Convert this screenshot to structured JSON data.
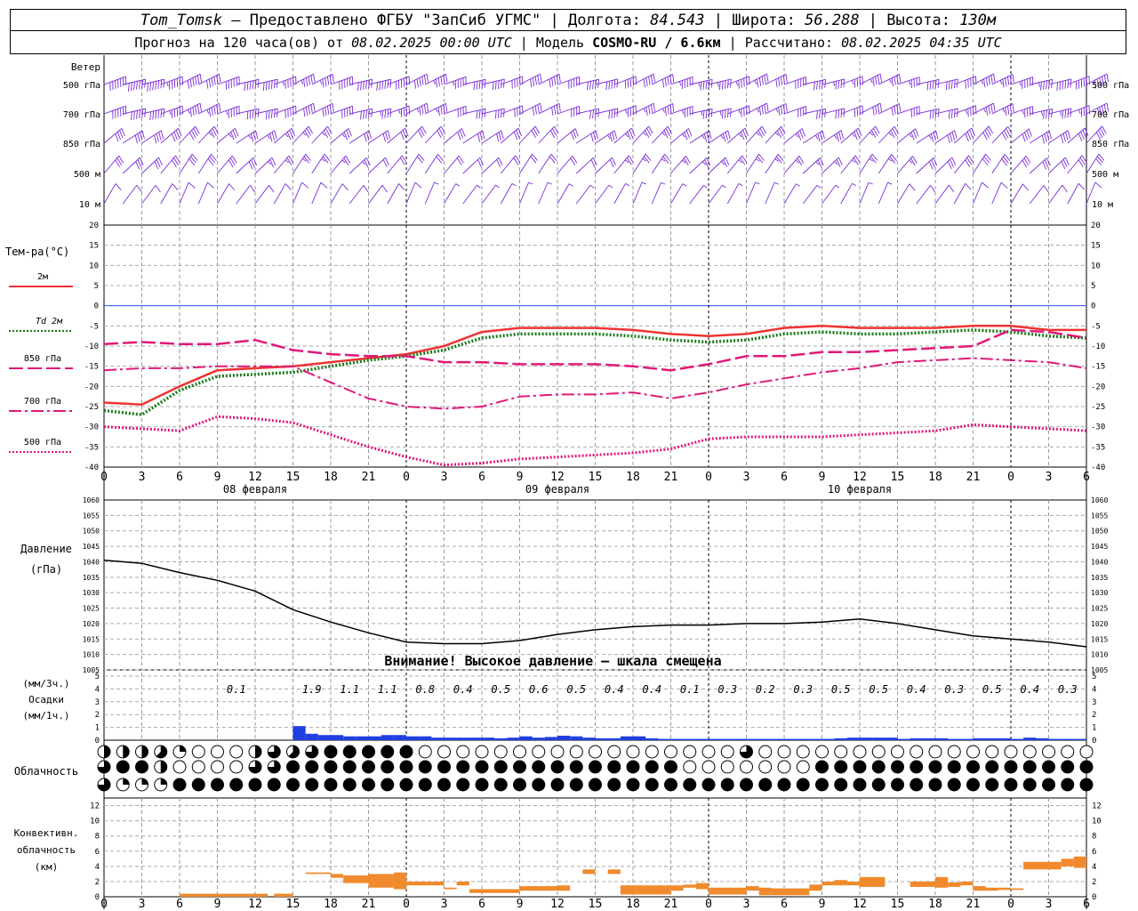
{
  "header": {
    "station": "Tom_Tomsk",
    "provider": "– Предоставлено ФГБУ \"ЗапСиб УГМС\"",
    "lon_label": "Долгота:",
    "lon": "84.543",
    "lat_label": "Широта:",
    "lat": "56.288",
    "alt_label": "Высота:",
    "alt": "130м",
    "forecast_label": "Прогноз на 120 часа(ов) от",
    "forecast_start": "08.02.2025 00:00 UTC",
    "model_label": "Модель",
    "model": "COSMO-RU / 6.6км",
    "calc_label": "Рассчитано:",
    "calc_time": "08.02.2025 04:35 UTC"
  },
  "colors": {
    "wind": "#7a2bd6",
    "t2m": "#ee3333",
    "td2m": "#1a7a1a",
    "upper": "#e0187a",
    "pressure": "#000000",
    "precip": "#1f3fe0",
    "conv": "#f08a2c",
    "zero_line": "#3355ff"
  },
  "labels": {
    "wind": "Ветер",
    "levels": [
      "500 гПа",
      "700 гПа",
      "850 гПа",
      "500 м",
      "10 м"
    ],
    "temp": "Тем-ра(°C)",
    "temp_legend": [
      "2м",
      "Td 2м",
      "850 гПа",
      "700 гПа",
      "500 гПа"
    ],
    "pressure": [
      "Давление",
      "(гПа)"
    ],
    "pressure_warning": "Внимание! Высокое давление – шкала смещена",
    "precip": [
      "(мм/3ч.)",
      "Осадки",
      "(мм/1ч.)"
    ],
    "cloud": "Облачность",
    "conv": [
      "Конвективн.",
      "облачность",
      "(км)"
    ]
  },
  "chart_data": [
    {
      "type": "line",
      "title": "Тем-ра(°C)",
      "x_hours": [
        0,
        3,
        6,
        9,
        12,
        15,
        18,
        21,
        24,
        27,
        30,
        33,
        36,
        39,
        42,
        45,
        48,
        51,
        54,
        57,
        60,
        63,
        66,
        69,
        72,
        75,
        78
      ],
      "x_tick_labels": [
        "0",
        "3",
        "6",
        "9",
        "12",
        "15",
        "18",
        "21",
        "0",
        "3",
        "6",
        "9",
        "12",
        "15",
        "18",
        "21",
        "0",
        "3",
        "6",
        "9",
        "12",
        "15",
        "18",
        "21",
        "0",
        "3",
        "6"
      ],
      "date_labels": [
        "08 февраля",
        "09 февраля",
        "10 февраля"
      ],
      "ylim": [
        -40,
        20
      ],
      "y_ticks": [
        20,
        15,
        10,
        5,
        0,
        -5,
        -10,
        -15,
        -20,
        -25,
        -30,
        -35,
        -40
      ],
      "series": [
        {
          "name": "2м",
          "values": [
            -24,
            -24.5,
            -20,
            -16,
            -15.5,
            -15,
            -14,
            -13,
            -12,
            -10,
            -6.5,
            -5.5,
            -5.5,
            -5.5,
            -6,
            -7,
            -7.5,
            -7,
            -5.5,
            -5,
            -5.5,
            -5.5,
            -5.5,
            -5,
            -5,
            -6,
            -6
          ]
        },
        {
          "name": "Td 2м",
          "values": [
            -26,
            -27,
            -21,
            -17.5,
            -17,
            -16.5,
            -15,
            -13.5,
            -12.5,
            -11,
            -8,
            -7,
            -7,
            -7,
            -7.5,
            -8.5,
            -9,
            -8.5,
            -7,
            -6.5,
            -7,
            -7,
            -6.5,
            -6,
            -6.5,
            -7.5,
            -8
          ]
        },
        {
          "name": "850 гПа",
          "values": [
            -9.5,
            -9,
            -9.5,
            -9.5,
            -8.5,
            -11,
            -12,
            -12.5,
            -12.5,
            -14,
            -14,
            -14.5,
            -14.5,
            -14.5,
            -15,
            -16,
            -14.5,
            -12.5,
            -12.5,
            -11.5,
            -11.5,
            -11,
            -10.5,
            -10,
            -6,
            -6.5,
            -8
          ]
        },
        {
          "name": "700 гПа",
          "values": [
            -16,
            -15.5,
            -15.5,
            -15,
            -15,
            -15,
            -19,
            -23,
            -25,
            -25.5,
            -25,
            -22.5,
            -22,
            -22,
            -21.5,
            -23,
            -21.5,
            -19.5,
            -18,
            -16.5,
            -15.5,
            -14,
            -13.5,
            -13,
            -13.5,
            -14,
            -15.5
          ]
        },
        {
          "name": "500 гПа",
          "values": [
            -30,
            -30.5,
            -31,
            -27.5,
            -28,
            -29,
            -32,
            -35,
            -37.5,
            -39.5,
            -39,
            -38,
            -37.5,
            -37,
            -36.5,
            -35.5,
            -33,
            -32.5,
            -32.5,
            -32.5,
            -32,
            -31.5,
            -31,
            -29.5,
            -30,
            -30.5,
            -31
          ]
        }
      ]
    },
    {
      "type": "line",
      "title": "Давление (гПа)",
      "x_hours": [
        0,
        3,
        6,
        9,
        12,
        15,
        18,
        21,
        24,
        27,
        30,
        33,
        36,
        39,
        42,
        45,
        48,
        51,
        54,
        57,
        60,
        63,
        66,
        69,
        72,
        75,
        78
      ],
      "ylim": [
        1005,
        1060
      ],
      "y_ticks": [
        1060,
        1055,
        1050,
        1045,
        1040,
        1035,
        1030,
        1025,
        1020,
        1015,
        1010,
        1005
      ],
      "series": [
        {
          "name": "Давление",
          "values": [
            1040.5,
            1039.5,
            1036.5,
            1034,
            1030.5,
            1024.5,
            1020.5,
            1017,
            1014,
            1013.5,
            1013.5,
            1014.5,
            1016.5,
            1018,
            1019,
            1019.5,
            1019.5,
            1020,
            1020,
            1020.5,
            1021.5,
            1020,
            1018,
            1016,
            1015,
            1014,
            1012.5
          ]
        }
      ]
    },
    {
      "type": "bar",
      "title": "Осадки",
      "ylim": [
        0,
        5
      ],
      "y_ticks": [
        5,
        4,
        3,
        2,
        1,
        0
      ],
      "sum_x_hours": [
        10.5,
        16.5,
        19.5,
        22.5,
        25.5,
        28.5,
        31.5,
        34.5,
        37.5,
        40.5,
        43.5,
        46.5,
        49.5,
        52.5,
        55.5,
        58.5,
        61.5,
        64.5,
        67.5,
        70.5,
        73.5,
        76.5
      ],
      "sums_3h": [
        "0.1",
        "1.9",
        "1.1",
        "1.1",
        "0.8",
        "0.4",
        "0.5",
        "0.6",
        "0.5",
        "0.4",
        "0.4",
        "0.1",
        "0.3",
        "0.2",
        "0.3",
        "0.5",
        "0.5",
        "0.4",
        "0.3",
        "0.5",
        "0.4",
        "0.3"
      ],
      "hourly": [
        [
          15,
          1.1
        ],
        [
          16,
          0.5
        ],
        [
          17,
          0.4
        ],
        [
          18,
          0.4
        ],
        [
          19,
          0.3
        ],
        [
          20,
          0.3
        ],
        [
          21,
          0.3
        ],
        [
          22,
          0.4
        ],
        [
          23,
          0.4
        ],
        [
          24,
          0.3
        ],
        [
          25,
          0.3
        ],
        [
          26,
          0.2
        ],
        [
          27,
          0.2
        ],
        [
          28,
          0.2
        ],
        [
          29,
          0.2
        ],
        [
          30,
          0.2
        ],
        [
          31,
          0.15
        ],
        [
          32,
          0.2
        ],
        [
          33,
          0.3
        ],
        [
          34,
          0.2
        ],
        [
          35,
          0.25
        ],
        [
          36,
          0.35
        ],
        [
          37,
          0.3
        ],
        [
          38,
          0.2
        ],
        [
          39,
          0.15
        ],
        [
          40,
          0.15
        ],
        [
          41,
          0.3
        ],
        [
          42,
          0.3
        ],
        [
          43,
          0.15
        ],
        [
          44,
          0.1
        ],
        [
          45,
          0.1
        ],
        [
          46,
          0.1
        ],
        [
          47,
          0.1
        ],
        [
          48,
          0.1
        ],
        [
          49,
          0.1
        ],
        [
          50,
          0.1
        ],
        [
          51,
          0.1
        ],
        [
          52,
          0.1
        ],
        [
          53,
          0.1
        ],
        [
          54,
          0.1
        ],
        [
          55,
          0.1
        ],
        [
          56,
          0.1
        ],
        [
          57,
          0.1
        ],
        [
          58,
          0.15
        ],
        [
          59,
          0.2
        ],
        [
          60,
          0.2
        ],
        [
          61,
          0.2
        ],
        [
          62,
          0.2
        ],
        [
          63,
          0.1
        ],
        [
          64,
          0.15
        ],
        [
          65,
          0.15
        ],
        [
          66,
          0.15
        ],
        [
          67,
          0.1
        ],
        [
          68,
          0.1
        ],
        [
          69,
          0.15
        ],
        [
          70,
          0.15
        ],
        [
          71,
          0.15
        ],
        [
          72,
          0.1
        ],
        [
          73,
          0.2
        ],
        [
          74,
          0.15
        ],
        [
          75,
          0.1
        ],
        [
          76,
          0.1
        ],
        [
          77,
          0.1
        ]
      ]
    },
    {
      "type": "bar",
      "title": "Конвективн. облачность (км)",
      "ylim": [
        0,
        13
      ],
      "y_ticks": [
        12,
        10,
        8,
        6,
        4,
        2,
        0
      ],
      "segments": [
        [
          6,
          11.5,
          0,
          0.4
        ],
        [
          11.5,
          13,
          0,
          0.4
        ],
        [
          13.5,
          15,
          0,
          0.4
        ],
        [
          16,
          18,
          3,
          3.2
        ],
        [
          18,
          19,
          2.5,
          3
        ],
        [
          19,
          21,
          1.8,
          2.8
        ],
        [
          21,
          23,
          1.2,
          3
        ],
        [
          23,
          24,
          1,
          3.2
        ],
        [
          24,
          27,
          1.5,
          2
        ],
        [
          27,
          28,
          1,
          1.2
        ],
        [
          28,
          29,
          1.5,
          2
        ],
        [
          29,
          33,
          0.5,
          1
        ],
        [
          33,
          36,
          0.8,
          1.4
        ],
        [
          36,
          37,
          0.8,
          1.5
        ],
        [
          38,
          39,
          3,
          3.6
        ],
        [
          40,
          41,
          3,
          3.6
        ],
        [
          41,
          42,
          0.3,
          1.5
        ],
        [
          42,
          45,
          0.3,
          1.5
        ],
        [
          45,
          46,
          0.8,
          1.5
        ],
        [
          46,
          47,
          1.2,
          1.6
        ],
        [
          47,
          48,
          1,
          1.8
        ],
        [
          48,
          51,
          0.3,
          1.2
        ],
        [
          51,
          52,
          0.8,
          1.4
        ],
        [
          52,
          53,
          0.2,
          1.2
        ],
        [
          53,
          56,
          0.2,
          1.1
        ],
        [
          56,
          57,
          0.8,
          1.6
        ],
        [
          57,
          58,
          1.5,
          2
        ],
        [
          58,
          59,
          1.5,
          2.2
        ],
        [
          59,
          60,
          1.5,
          2
        ],
        [
          60,
          62,
          1.3,
          2.6
        ],
        [
          64,
          66,
          1.3,
          2
        ],
        [
          66,
          67,
          1.2,
          2.6
        ],
        [
          67,
          68,
          1.3,
          1.9
        ],
        [
          68,
          69,
          1.5,
          2
        ],
        [
          69,
          70,
          0.8,
          1.4
        ],
        [
          70,
          71,
          0.8,
          1.2
        ],
        [
          71,
          72,
          0.9,
          1.2
        ],
        [
          72,
          73,
          0.9,
          1.1
        ],
        [
          73,
          76,
          3.6,
          4.6
        ],
        [
          76,
          77,
          4,
          5
        ],
        [
          77,
          78,
          3.8,
          5.3
        ]
      ]
    },
    {
      "type": "table",
      "title": "Облачность",
      "rows": 3,
      "columns": 53,
      "cover_eighths": [
        [
          4,
          4,
          4,
          5,
          2,
          0,
          0,
          0,
          4,
          6,
          5,
          6,
          8,
          8,
          8,
          8,
          8,
          0,
          0,
          0,
          0,
          0,
          0,
          0,
          0,
          0,
          0,
          0,
          0,
          0,
          0,
          0,
          0,
          0,
          6,
          0,
          0,
          0,
          0,
          0,
          0,
          0,
          0,
          0,
          0,
          0,
          0,
          0,
          0,
          0,
          0,
          0,
          0
        ],
        [
          6,
          8,
          8,
          4,
          0,
          0,
          0,
          0,
          6,
          6,
          8,
          8,
          8,
          8,
          8,
          8,
          8,
          8,
          8,
          8,
          8,
          8,
          8,
          8,
          8,
          8,
          8,
          8,
          8,
          8,
          8,
          0,
          0,
          0,
          0,
          0,
          0,
          0,
          8,
          8,
          8,
          8,
          8,
          8,
          8,
          8,
          8,
          8,
          8,
          8,
          8,
          8,
          8
        ],
        [
          6,
          2,
          2,
          2,
          8,
          8,
          8,
          8,
          8,
          8,
          8,
          8,
          8,
          8,
          8,
          8,
          8,
          8,
          8,
          8,
          8,
          8,
          8,
          8,
          8,
          8,
          8,
          8,
          8,
          8,
          8,
          8,
          8,
          8,
          8,
          8,
          8,
          8,
          8,
          8,
          8,
          8,
          8,
          8,
          8,
          8,
          8,
          8,
          8,
          8,
          8,
          8,
          8
        ]
      ]
    },
    {
      "type": "scatter",
      "title": "Ветер",
      "levels": [
        "500 гПа",
        "700 гПа",
        "850 гПа",
        "500 м",
        "10 м"
      ],
      "dir_deg": [
        250,
        250,
        230,
        220,
        210
      ],
      "speed_ms": [
        [
          35,
          35,
          32,
          30,
          30,
          28,
          30,
          30,
          30,
          28,
          26,
          26,
          26,
          26,
          26,
          28,
          28,
          28,
          26,
          24,
          24,
          24,
          26,
          28,
          28,
          30,
          30
        ],
        [
          30,
          30,
          28,
          28,
          26,
          26,
          26,
          24,
          24,
          22,
          22,
          22,
          22,
          22,
          24,
          24,
          24,
          24,
          22,
          22,
          22,
          22,
          22,
          24,
          24,
          24,
          24
        ],
        [
          22,
          22,
          20,
          18,
          18,
          18,
          18,
          16,
          16,
          16,
          16,
          16,
          16,
          18,
          18,
          18,
          18,
          18,
          18,
          18,
          18,
          18,
          20,
          20,
          20,
          20,
          20
        ],
        [
          16,
          16,
          16,
          16,
          14,
          14,
          14,
          12,
          12,
          12,
          12,
          12,
          12,
          12,
          14,
          14,
          14,
          14,
          14,
          14,
          14,
          14,
          16,
          16,
          16,
          16,
          16
        ],
        [
          5,
          5,
          6,
          6,
          6,
          6,
          6,
          5,
          5,
          4,
          4,
          4,
          4,
          4,
          4,
          4,
          4,
          4,
          4,
          4,
          4,
          5,
          5,
          5,
          5,
          5,
          5
        ]
      ]
    }
  ]
}
